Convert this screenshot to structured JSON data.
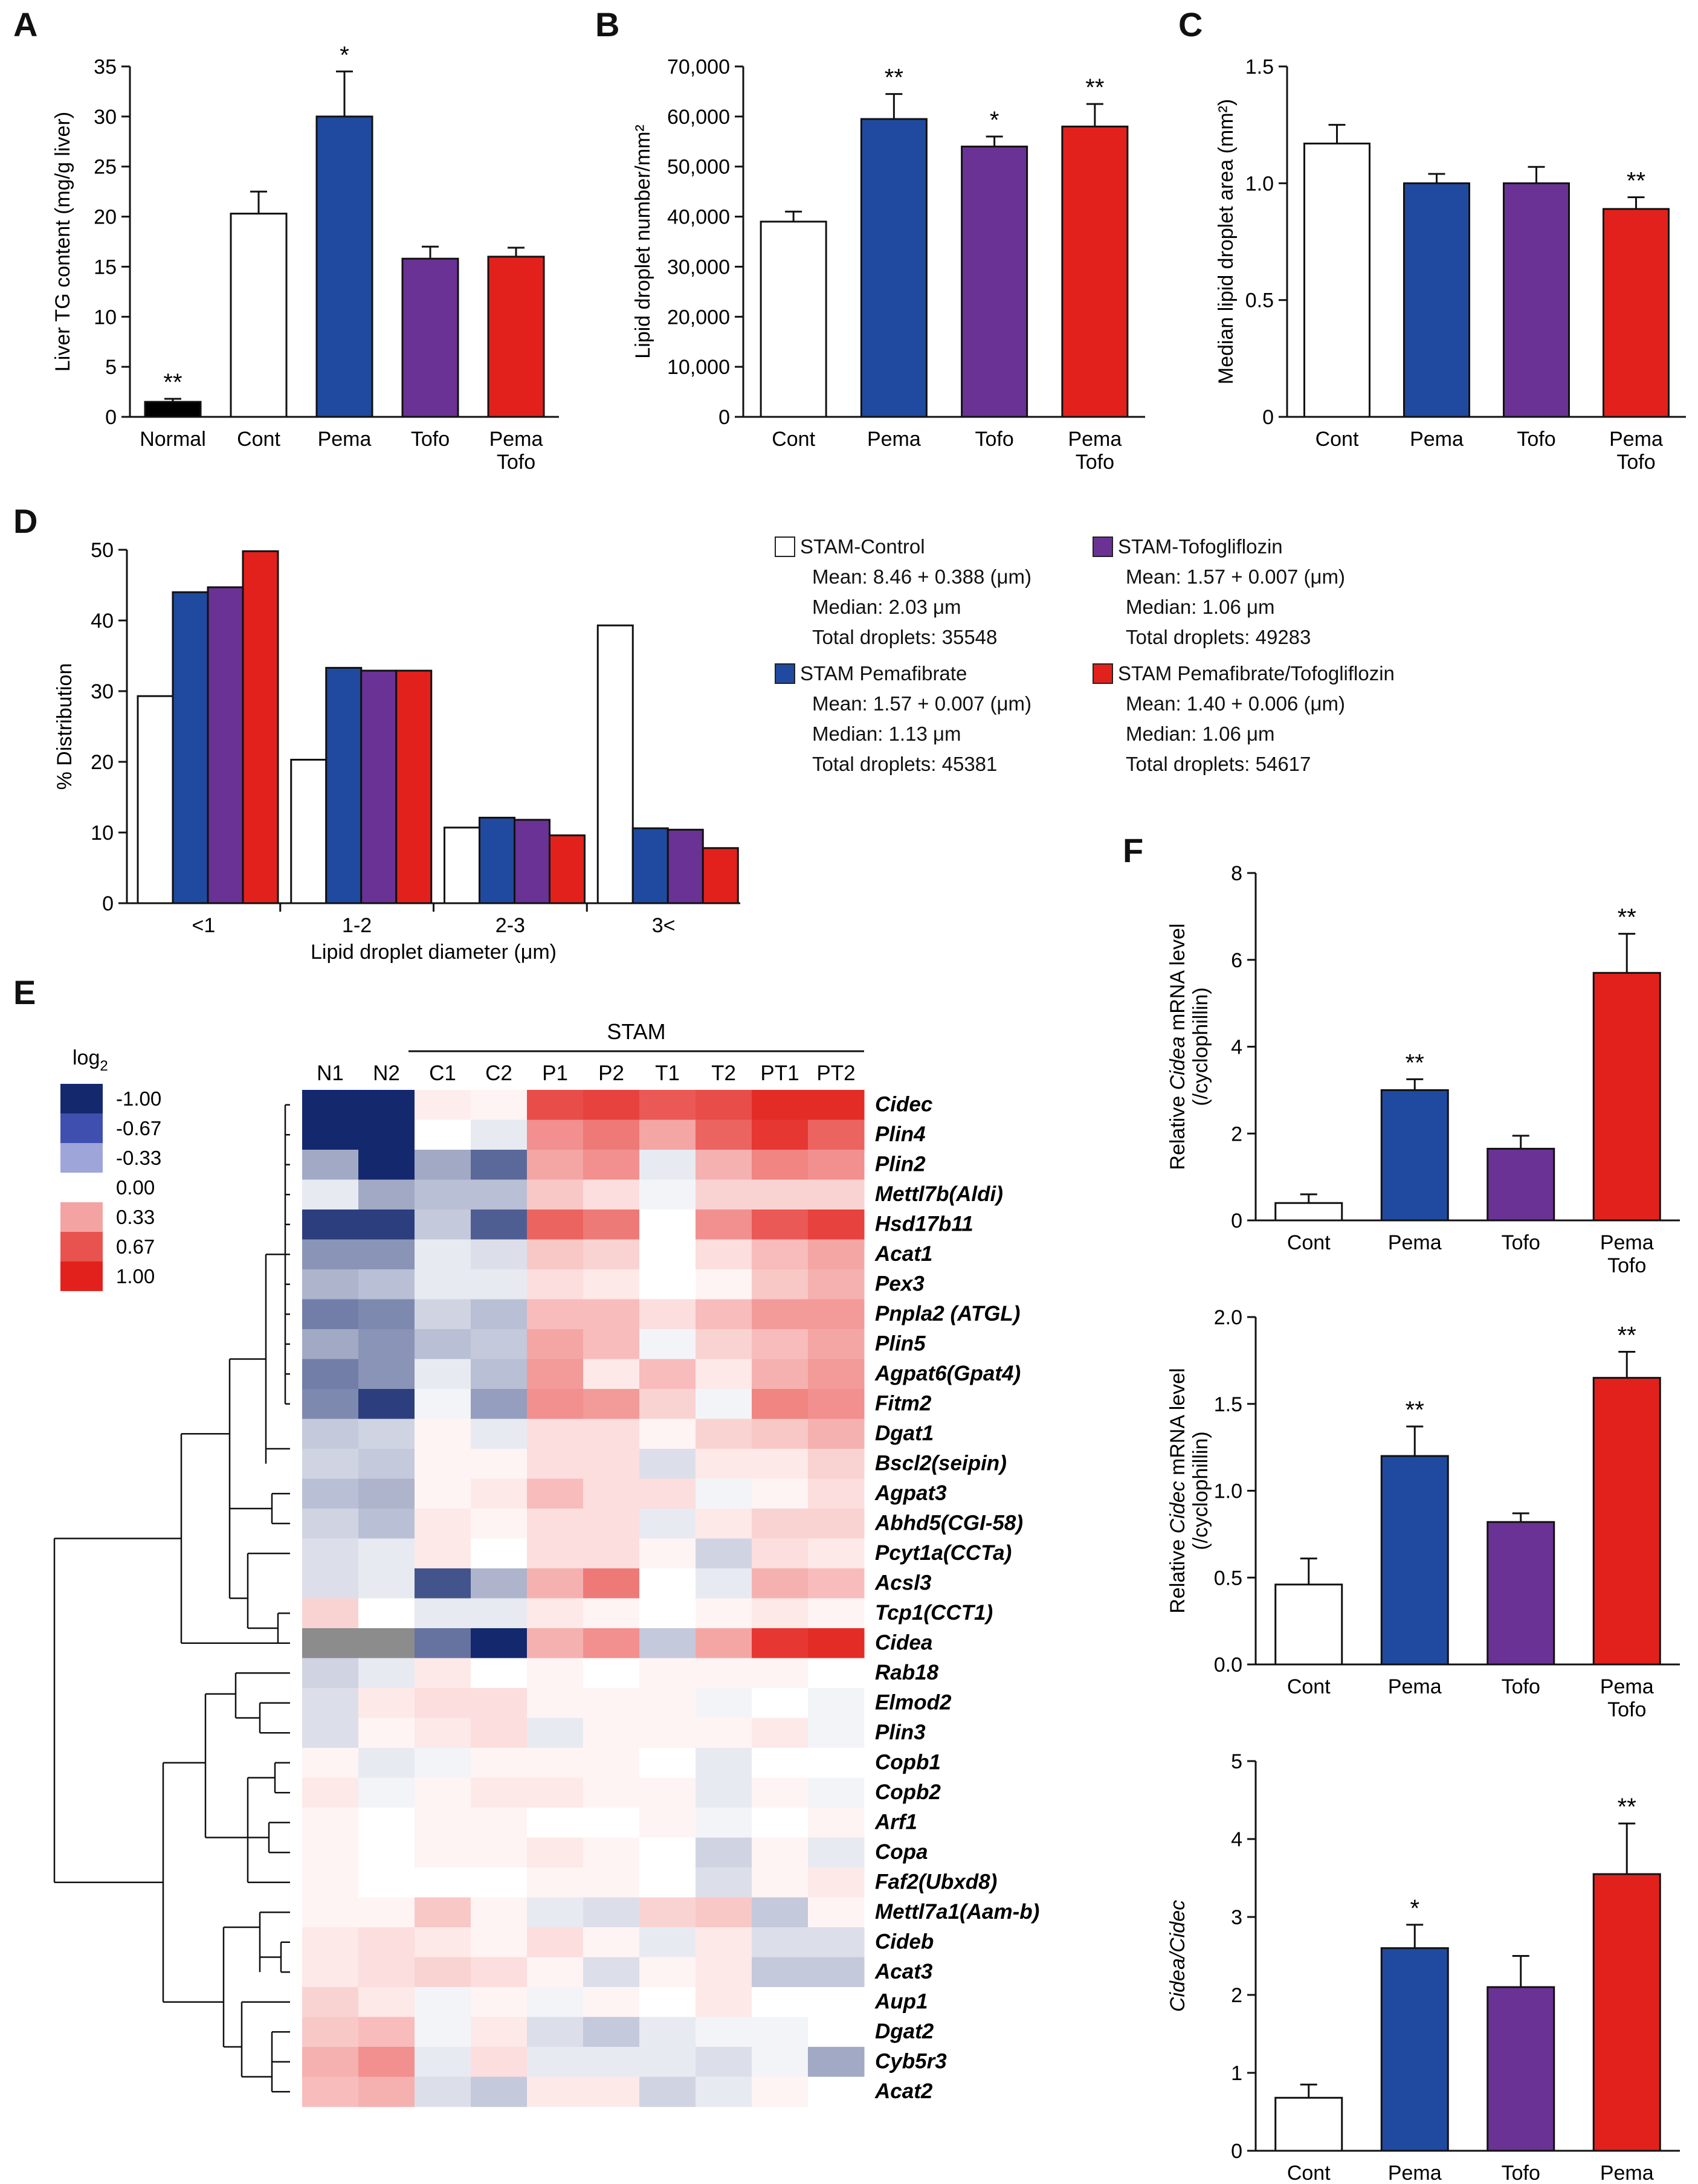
{
  "colors": {
    "cont": "#ffffff",
    "pema": "#1f4aa0",
    "tofo": "#6a3294",
    "pt": "#e3211c",
    "normal": "#000000",
    "stroke": "#111111"
  },
  "panels": {
    "A": "A",
    "B": "B",
    "C": "C",
    "D": "D",
    "E": "E",
    "F": "F"
  },
  "chart_data": [
    {
      "id": "A",
      "type": "bar",
      "categories": [
        "Normal",
        "Cont",
        "Pema",
        "Tofo",
        "Pema\nTofo"
      ],
      "values": [
        1.5,
        20.3,
        30.0,
        15.8,
        16.0
      ],
      "errors": [
        0.3,
        2.2,
        4.5,
        1.2,
        0.9
      ],
      "sig": [
        "**",
        "",
        "*",
        "",
        ""
      ],
      "bar_colors": [
        "#000000",
        "#ffffff",
        "#1f4aa0",
        "#6a3294",
        "#e3211c"
      ],
      "ylabel": "Liver TG content (mg/g liver)",
      "ylim": [
        0,
        35
      ],
      "yticks": [
        "0",
        "5",
        "10",
        "15",
        "20",
        "25",
        "30",
        "35"
      ]
    },
    {
      "id": "B",
      "type": "bar",
      "categories": [
        "Cont",
        "Pema",
        "Tofo",
        "Pema\nTofo"
      ],
      "values": [
        39000,
        59500,
        54000,
        58000
      ],
      "errors": [
        2000,
        5000,
        2000,
        4500
      ],
      "sig": [
        "",
        "**",
        "*",
        "**"
      ],
      "bar_colors": [
        "#ffffff",
        "#1f4aa0",
        "#6a3294",
        "#e3211c"
      ],
      "ylabel": "Lipid droplet number/mm²",
      "ylim": [
        0,
        70000
      ],
      "yticks": [
        "0",
        "10,000",
        "20,000",
        "30,000",
        "40,000",
        "50,000",
        "60,000",
        "70,000"
      ]
    },
    {
      "id": "C",
      "type": "bar",
      "categories": [
        "Cont",
        "Pema",
        "Tofo",
        "Pema\nTofo"
      ],
      "values": [
        1.17,
        1.0,
        1.0,
        0.89
      ],
      "errors": [
        0.08,
        0.04,
        0.07,
        0.05
      ],
      "sig": [
        "",
        "",
        "",
        "**"
      ],
      "bar_colors": [
        "#ffffff",
        "#1f4aa0",
        "#6a3294",
        "#e3211c"
      ],
      "ylabel": "Median lipid droplet area (mm²)",
      "ylim": [
        0,
        1.5
      ],
      "yticks": [
        "0",
        "0.5",
        "1.0",
        "1.5"
      ]
    },
    {
      "id": "D",
      "type": "bar",
      "categories": [
        "<1",
        "1-2",
        "2-3",
        "3<"
      ],
      "series": [
        {
          "name": "STAM-Control",
          "color": "#ffffff",
          "values": [
            29.3,
            20.3,
            10.7,
            39.3
          ]
        },
        {
          "name": "STAM Pemafibrate",
          "color": "#1f4aa0",
          "values": [
            44.0,
            33.3,
            12.1,
            10.6
          ]
        },
        {
          "name": "STAM-Tofogliflozin",
          "color": "#6a3294",
          "values": [
            44.7,
            32.9,
            11.8,
            10.4
          ]
        },
        {
          "name": "STAM Pemafibrate/Tofogliflozin",
          "color": "#e3211c",
          "values": [
            49.8,
            32.9,
            9.6,
            7.8
          ]
        }
      ],
      "ylabel": "% Distribution",
      "xlabel": "Lipid droplet diameter (μm)",
      "ylim": [
        0,
        50
      ],
      "yticks": [
        "0",
        "10",
        "20",
        "30",
        "40",
        "50"
      ],
      "legend": [
        {
          "name": "STAM-Control",
          "color": "#ffffff",
          "lines": [
            "Mean: 8.46 + 0.388 (μm)",
            "Median: 2.03 μm",
            "Total droplets: 35548"
          ]
        },
        {
          "name": "STAM-Tofogliflozin",
          "color": "#6a3294",
          "lines": [
            "Mean: 1.57 + 0.007 (μm)",
            "Median: 1.06 μm",
            "Total droplets: 49283"
          ]
        },
        {
          "name": "STAM Pemafibrate",
          "color": "#1f4aa0",
          "lines": [
            "Mean: 1.57 + 0.007 (μm)",
            "Median: 1.13 μm",
            "Total droplets: 45381"
          ]
        },
        {
          "name": "STAM Pemafibrate/Tofogliflozin",
          "color": "#e3211c",
          "lines": [
            "Mean: 1.40 + 0.006 (μm)",
            "Median: 1.06 μm",
            "Total droplets: 54617"
          ]
        }
      ]
    },
    {
      "id": "E",
      "type": "heatmap",
      "group_label": "STAM",
      "columns": [
        "N1",
        "N2",
        "C1",
        "C2",
        "P1",
        "P2",
        "T1",
        "T2",
        "PT1",
        "PT2"
      ],
      "scale_title": "log2",
      "scale": [
        {
          "label": "-1.00",
          "color": "#14286e"
        },
        {
          "label": "-0.67",
          "color": "#3f4fb0"
        },
        {
          "label": "-0.33",
          "color": "#9ea6d9"
        },
        {
          "label": "0.00",
          "color": "#ffffff"
        },
        {
          "label": "0.33",
          "color": "#f4a3a3"
        },
        {
          "label": "0.67",
          "color": "#e9534f"
        },
        {
          "label": "1.00",
          "color": "#e3211c"
        }
      ],
      "genes": [
        "Cidec",
        "Plin4",
        "Plin2",
        "Mettl7b(Aldi)",
        "Hsd17b11",
        "Acat1",
        "Pex3",
        "Pnpla2 (ATGL)",
        "Plin5",
        "Agpat6(Gpat4)",
        "Fitm2",
        "Dgat1",
        "Bscl2(seipin)",
        "Agpat3",
        "Abhd5(CGI-58)",
        "Pcyt1a(CCTa)",
        "Acsl3",
        "Tcp1(CCT1)",
        "Cidea",
        "Rab18",
        "Elmod2",
        "Plin3",
        "Copb1",
        "Copb2",
        "Arf1",
        "Copa",
        "Faf2(Ubxd8)",
        "Mettl7a1(Aam-b)",
        "Cideb",
        "Acat3",
        "Aup1",
        "Dgat2",
        "Cyb5r3",
        "Acat2"
      ],
      "values": [
        [
          -1.0,
          -1.0,
          0.08,
          0.05,
          0.8,
          0.85,
          0.75,
          0.8,
          0.95,
          0.95
        ],
        [
          -1.0,
          -1.0,
          0.0,
          -0.1,
          0.5,
          0.6,
          0.4,
          0.7,
          0.9,
          0.7
        ],
        [
          -0.4,
          -1.0,
          -0.4,
          -0.7,
          0.4,
          0.5,
          -0.1,
          0.35,
          0.55,
          0.5
        ],
        [
          -0.1,
          -0.4,
          -0.3,
          -0.3,
          0.25,
          0.15,
          -0.05,
          0.2,
          0.2,
          0.2
        ],
        [
          -0.9,
          -0.9,
          -0.25,
          -0.75,
          0.7,
          0.6,
          0.0,
          0.5,
          0.75,
          0.85
        ],
        [
          -0.5,
          -0.5,
          -0.1,
          -0.15,
          0.25,
          0.2,
          0.0,
          0.15,
          0.3,
          0.4
        ],
        [
          -0.35,
          -0.3,
          -0.1,
          -0.1,
          0.15,
          0.1,
          0.0,
          0.05,
          0.25,
          0.35
        ],
        [
          -0.6,
          -0.55,
          -0.2,
          -0.3,
          0.3,
          0.3,
          0.15,
          0.3,
          0.45,
          0.45
        ],
        [
          -0.4,
          -0.5,
          -0.3,
          -0.25,
          0.4,
          0.3,
          -0.05,
          0.2,
          0.3,
          0.4
        ],
        [
          -0.6,
          -0.5,
          -0.1,
          -0.3,
          0.45,
          0.1,
          0.3,
          0.1,
          0.35,
          0.45
        ],
        [
          -0.55,
          -0.9,
          -0.05,
          -0.45,
          0.5,
          0.45,
          0.2,
          -0.05,
          0.55,
          0.5
        ],
        [
          -0.25,
          -0.2,
          0.05,
          -0.1,
          0.15,
          0.15,
          0.05,
          0.2,
          0.25,
          0.35
        ],
        [
          -0.2,
          -0.25,
          0.05,
          0.05,
          0.15,
          0.15,
          -0.15,
          0.1,
          0.1,
          0.2
        ],
        [
          -0.3,
          -0.35,
          0.05,
          0.1,
          0.3,
          0.15,
          0.15,
          -0.05,
          0.05,
          0.15
        ],
        [
          -0.2,
          -0.3,
          0.1,
          0.05,
          0.15,
          0.15,
          -0.1,
          0.1,
          0.2,
          0.2
        ],
        [
          -0.15,
          -0.1,
          0.1,
          0.0,
          0.15,
          0.15,
          0.05,
          -0.2,
          0.15,
          0.1
        ],
        [
          -0.15,
          -0.1,
          -0.8,
          -0.35,
          0.35,
          0.6,
          0.0,
          -0.1,
          0.35,
          0.3
        ],
        [
          0.2,
          0.0,
          -0.1,
          -0.1,
          0.1,
          0.05,
          0.0,
          0.05,
          0.1,
          0.05
        ],
        [
          null,
          null,
          -0.65,
          -1.0,
          0.35,
          0.5,
          -0.25,
          0.4,
          0.9,
          0.95
        ],
        [
          -0.2,
          -0.1,
          0.1,
          0.0,
          0.05,
          0.0,
          0.05,
          0.05,
          0.05,
          0.0
        ],
        [
          -0.15,
          0.1,
          0.15,
          0.15,
          0.05,
          0.05,
          0.05,
          -0.05,
          0.0,
          -0.05
        ],
        [
          -0.15,
          0.05,
          0.1,
          0.15,
          -0.1,
          0.05,
          0.05,
          0.05,
          0.1,
          -0.05
        ],
        [
          0.05,
          -0.1,
          -0.05,
          0.05,
          0.05,
          0.05,
          0.0,
          -0.1,
          0.0,
          0.0
        ],
        [
          0.1,
          -0.05,
          0.05,
          0.1,
          0.1,
          0.05,
          0.05,
          -0.1,
          0.05,
          -0.05
        ],
        [
          0.05,
          0.0,
          0.05,
          0.05,
          0.0,
          0.0,
          0.05,
          -0.05,
          0.0,
          0.05
        ],
        [
          0.05,
          0.0,
          0.05,
          0.05,
          0.1,
          0.05,
          0.0,
          -0.2,
          0.05,
          -0.1
        ],
        [
          0.05,
          0.0,
          0.0,
          0.0,
          0.05,
          0.05,
          0.0,
          -0.15,
          0.05,
          0.1
        ],
        [
          0.05,
          0.05,
          0.25,
          0.05,
          -0.1,
          -0.15,
          0.2,
          0.25,
          -0.25,
          0.05
        ],
        [
          0.1,
          0.15,
          0.1,
          0.05,
          0.15,
          0.05,
          -0.1,
          0.1,
          -0.15,
          -0.15
        ],
        [
          0.1,
          0.15,
          0.2,
          0.15,
          0.05,
          -0.15,
          0.05,
          0.1,
          -0.25,
          -0.25
        ],
        [
          0.2,
          0.1,
          -0.05,
          0.05,
          -0.05,
          0.05,
          0.0,
          0.1,
          0.0,
          0.0
        ],
        [
          0.25,
          0.3,
          -0.05,
          0.1,
          -0.15,
          -0.25,
          -0.1,
          -0.05,
          -0.05,
          0.0
        ],
        [
          0.35,
          0.5,
          -0.1,
          0.15,
          -0.1,
          -0.1,
          -0.1,
          -0.15,
          -0.05,
          -0.4
        ],
        [
          0.3,
          0.35,
          -0.15,
          -0.25,
          0.1,
          0.1,
          -0.2,
          -0.1,
          0.05,
          0.0
        ]
      ]
    },
    {
      "id": "F1",
      "type": "bar",
      "categories": [
        "Cont",
        "Pema",
        "Tofo",
        "Pema\nTofo"
      ],
      "values": [
        0.4,
        3.0,
        1.65,
        5.7
      ],
      "errors": [
        0.2,
        0.25,
        0.3,
        0.9
      ],
      "sig": [
        "",
        "**",
        "",
        "**"
      ],
      "bar_colors": [
        "#ffffff",
        "#1f4aa0",
        "#6a3294",
        "#e3211c"
      ],
      "ylabel": "Relative Cidea mRNA level (/cyclophillin)",
      "ylim": [
        0,
        8
      ],
      "yticks": [
        "0",
        "2",
        "4",
        "6",
        "8"
      ]
    },
    {
      "id": "F2",
      "type": "bar",
      "categories": [
        "Cont",
        "Pema",
        "Tofo",
        "Pema\nTofo"
      ],
      "values": [
        0.46,
        1.2,
        0.82,
        1.65
      ],
      "errors": [
        0.15,
        0.17,
        0.05,
        0.15
      ],
      "sig": [
        "",
        "**",
        "",
        "**"
      ],
      "bar_colors": [
        "#ffffff",
        "#1f4aa0",
        "#6a3294",
        "#e3211c"
      ],
      "ylabel": "Relative Cidec mRNA level (/cyclophillin)",
      "ylim": [
        0,
        2.0
      ],
      "yticks": [
        "0.0",
        "0.5",
        "1.0",
        "1.5",
        "2.0"
      ]
    },
    {
      "id": "F3",
      "type": "bar",
      "categories": [
        "Cont",
        "Pema",
        "Tofo",
        "Pema\nTofo"
      ],
      "values": [
        0.68,
        2.6,
        2.1,
        3.55
      ],
      "errors": [
        0.17,
        0.3,
        0.4,
        0.65
      ],
      "sig": [
        "",
        "*",
        "",
        "**"
      ],
      "bar_colors": [
        "#ffffff",
        "#1f4aa0",
        "#6a3294",
        "#e3211c"
      ],
      "ylabel": "Cidea/Cidec",
      "ylim": [
        0,
        5
      ],
      "yticks": [
        "0",
        "1",
        "2",
        "3",
        "4",
        "5"
      ]
    }
  ]
}
